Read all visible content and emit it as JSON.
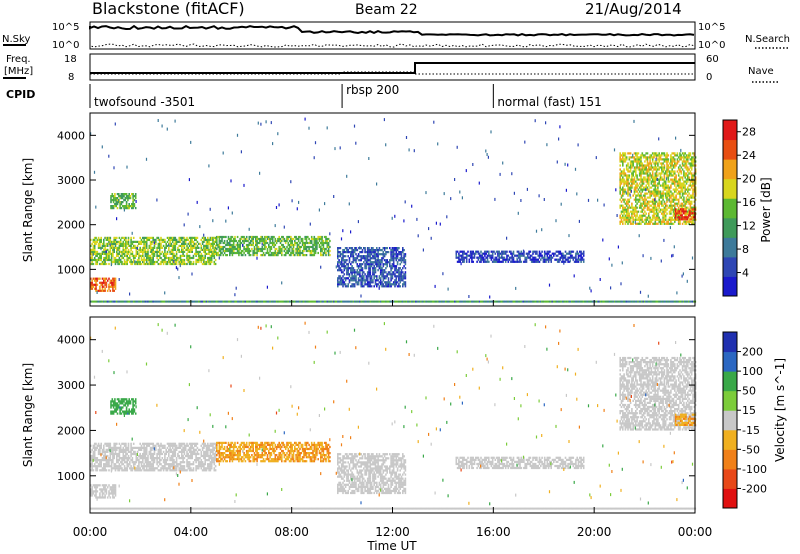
{
  "header": {
    "station": "Blackstone (fitACF)",
    "beam": "Beam 22",
    "date": "21/Aug/2014"
  },
  "top_panel": {
    "left_label": "N.Sky",
    "right_label": "N.Search",
    "left_ticks": [
      "10^5",
      "10^0"
    ],
    "right_ticks": [
      "10^5",
      "10^0"
    ]
  },
  "freq_panel": {
    "left_label_1": "Freq.",
    "left_label_2": "[MHz]",
    "right_label": "Nave",
    "left_ticks": [
      "18",
      "8"
    ],
    "right_ticks": [
      "60",
      "0"
    ]
  },
  "cpid": {
    "label": "CPID",
    "segments": [
      {
        "name": "twofsound -3501",
        "start_hour": 0
      },
      {
        "name": "rbsp 200",
        "start_hour": 10
      },
      {
        "name": "normal (fast) 151",
        "start_hour": 16
      }
    ]
  },
  "chart_data": [
    {
      "type": "heatmap",
      "title": "",
      "xlabel": "Time UT",
      "ylabel": "Slant Range [km]",
      "xlim_hours": [
        0,
        24
      ],
      "ylim": [
        180,
        4500
      ],
      "x_ticks": [
        "00:00",
        "04:00",
        "08:00",
        "12:00",
        "16:00",
        "20:00",
        "00:00"
      ],
      "y_ticks": [
        1000,
        2000,
        3000,
        4000
      ],
      "colorbar": {
        "label": "Power [dB]",
        "ticks": [
          4,
          8,
          12,
          16,
          20,
          24,
          28
        ],
        "range": [
          0,
          30
        ],
        "colors": [
          "#1a1acc",
          "#2e46b4",
          "#3d7a9a",
          "#3f9a5a",
          "#5cb832",
          "#d8d61e",
          "#f0a21a",
          "#e84e12",
          "#e01818"
        ]
      },
      "features": [
        {
          "t": [
            0.0,
            1.0
          ],
          "r": [
            500,
            800
          ],
          "p": 24
        },
        {
          "t": [
            0.0,
            5.0
          ],
          "r": [
            1100,
            1700
          ],
          "p": 16
        },
        {
          "t": [
            0.8,
            1.8
          ],
          "r": [
            2350,
            2700
          ],
          "p": 14
        },
        {
          "t": [
            5.0,
            9.5
          ],
          "r": [
            1300,
            1750
          ],
          "p": 14
        },
        {
          "t": [
            9.8,
            12.5
          ],
          "r": [
            600,
            1500
          ],
          "p": 6
        },
        {
          "t": [
            14.5,
            19.6
          ],
          "r": [
            1150,
            1400
          ],
          "p": 4
        },
        {
          "t": [
            21.0,
            24.0
          ],
          "r": [
            2000,
            3600
          ],
          "p": 18
        },
        {
          "t": [
            23.2,
            24.0
          ],
          "r": [
            2100,
            2350
          ],
          "p": 26
        }
      ]
    },
    {
      "type": "heatmap",
      "title": "",
      "xlabel": "Time UT",
      "ylabel": "Slant Range [km]",
      "xlim_hours": [
        0,
        24
      ],
      "ylim": [
        180,
        4500
      ],
      "x_ticks": [
        "00:00",
        "04:00",
        "08:00",
        "12:00",
        "16:00",
        "20:00",
        "00:00"
      ],
      "y_ticks": [
        1000,
        2000,
        3000,
        4000
      ],
      "colorbar": {
        "label": "Velocity [m s^-1]",
        "ticks": [
          200,
          100,
          50,
          15,
          -15,
          -50,
          -100,
          -200
        ],
        "range": [
          -250,
          250
        ],
        "colors": [
          "#2030b0",
          "#2b67c2",
          "#39a848",
          "#7ccc3a",
          "#c8c8c8",
          "#f0b020",
          "#f08018",
          "#e84818",
          "#e01010"
        ]
      },
      "features": [
        {
          "t": [
            0.0,
            1.0
          ],
          "r": [
            500,
            800
          ],
          "v": 0
        },
        {
          "t": [
            0.0,
            5.0
          ],
          "r": [
            1100,
            1700
          ],
          "v": 0
        },
        {
          "t": [
            0.8,
            1.8
          ],
          "r": [
            2350,
            2700
          ],
          "v": 120
        },
        {
          "t": [
            5.0,
            9.5
          ],
          "r": [
            1300,
            1750
          ],
          "v": -80
        },
        {
          "t": [
            9.8,
            12.5
          ],
          "r": [
            600,
            1500
          ],
          "v": 0
        },
        {
          "t": [
            14.5,
            19.6
          ],
          "r": [
            1150,
            1400
          ],
          "v": 0
        },
        {
          "t": [
            21.0,
            24.0
          ],
          "r": [
            2000,
            3600
          ],
          "v": 0
        },
        {
          "t": [
            23.2,
            24.0
          ],
          "r": [
            2100,
            2350
          ],
          "v": -80
        }
      ]
    }
  ]
}
